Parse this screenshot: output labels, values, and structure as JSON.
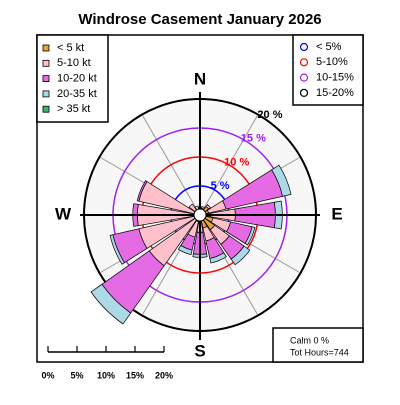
{
  "chart_data": {
    "type": "windrose",
    "title": "Windrose  Casement January 2026",
    "categories": [
      "N",
      null,
      null,
      null,
      "E",
      null,
      null,
      null,
      "S",
      null,
      null,
      null,
      "W",
      null,
      null,
      null
    ],
    "series": [
      {
        "name": "< 5  kt",
        "color": "#e8a33c",
        "values": [
          0.8,
          1.2,
          1.8,
          1.5,
          1.8,
          2.3,
          3.1,
          2.3,
          1.2,
          1.2,
          0.9,
          0.8,
          0.8,
          0.5,
          0.8,
          0.8
        ]
      },
      {
        "name": "5-10 kt",
        "color": "#ffc0cb",
        "values": [
          0.5,
          0.3,
          0.4,
          3.1,
          4.3,
          3.1,
          3.1,
          2.3,
          1.8,
          2.7,
          9.8,
          10,
          10,
          10.3,
          1.5,
          0.8
        ]
      },
      {
        "name": "10-20 kt",
        "color": "#e56be5",
        "values": [
          0,
          0,
          0,
          10,
          6.9,
          3.8,
          3.1,
          3.1,
          3.8,
          2.3,
          10,
          4.6,
          0.8,
          0.3,
          0,
          0
        ]
      },
      {
        "name": "20-35 kt",
        "color": "#add8e6",
        "values": [
          0,
          0,
          0,
          1.5,
          1.2,
          0.5,
          1.2,
          0.8,
          0.5,
          0.8,
          2.3,
          0.5,
          0,
          0,
          0,
          0
        ]
      },
      {
        "name": "> 35 kt",
        "color": "#3cb371",
        "values": [
          0,
          0,
          0,
          0,
          0,
          0,
          0,
          0,
          0,
          0,
          0,
          0,
          0,
          0,
          0,
          0
        ]
      }
    ],
    "rings": [
      {
        "value": 5,
        "label": "5 %",
        "color": "#0000ff"
      },
      {
        "value": 10,
        "label": "10 %",
        "color": "#ff0000"
      },
      {
        "value": 15,
        "label": "15 %",
        "color": "#a020f0"
      },
      {
        "value": 20,
        "label": "20 %",
        "color": "#000000"
      }
    ],
    "ring_legend": [
      {
        "label": "< 5%",
        "color": "#0000ff"
      },
      {
        "label": "5-10%",
        "color": "#ff0000"
      },
      {
        "label": "10-15%",
        "color": "#a020f0"
      },
      {
        "label": "15-20%",
        "color": "#000000"
      }
    ],
    "scale_ticks": [
      {
        "value": 0,
        "label": "0%"
      },
      {
        "value": 5,
        "label": "5%"
      },
      {
        "value": 10,
        "label": "10%"
      },
      {
        "value": 15,
        "label": "15%"
      },
      {
        "value": 20,
        "label": "20%"
      }
    ],
    "calm": "Calm 0 %",
    "total_hours": "Tot Hours=744"
  }
}
